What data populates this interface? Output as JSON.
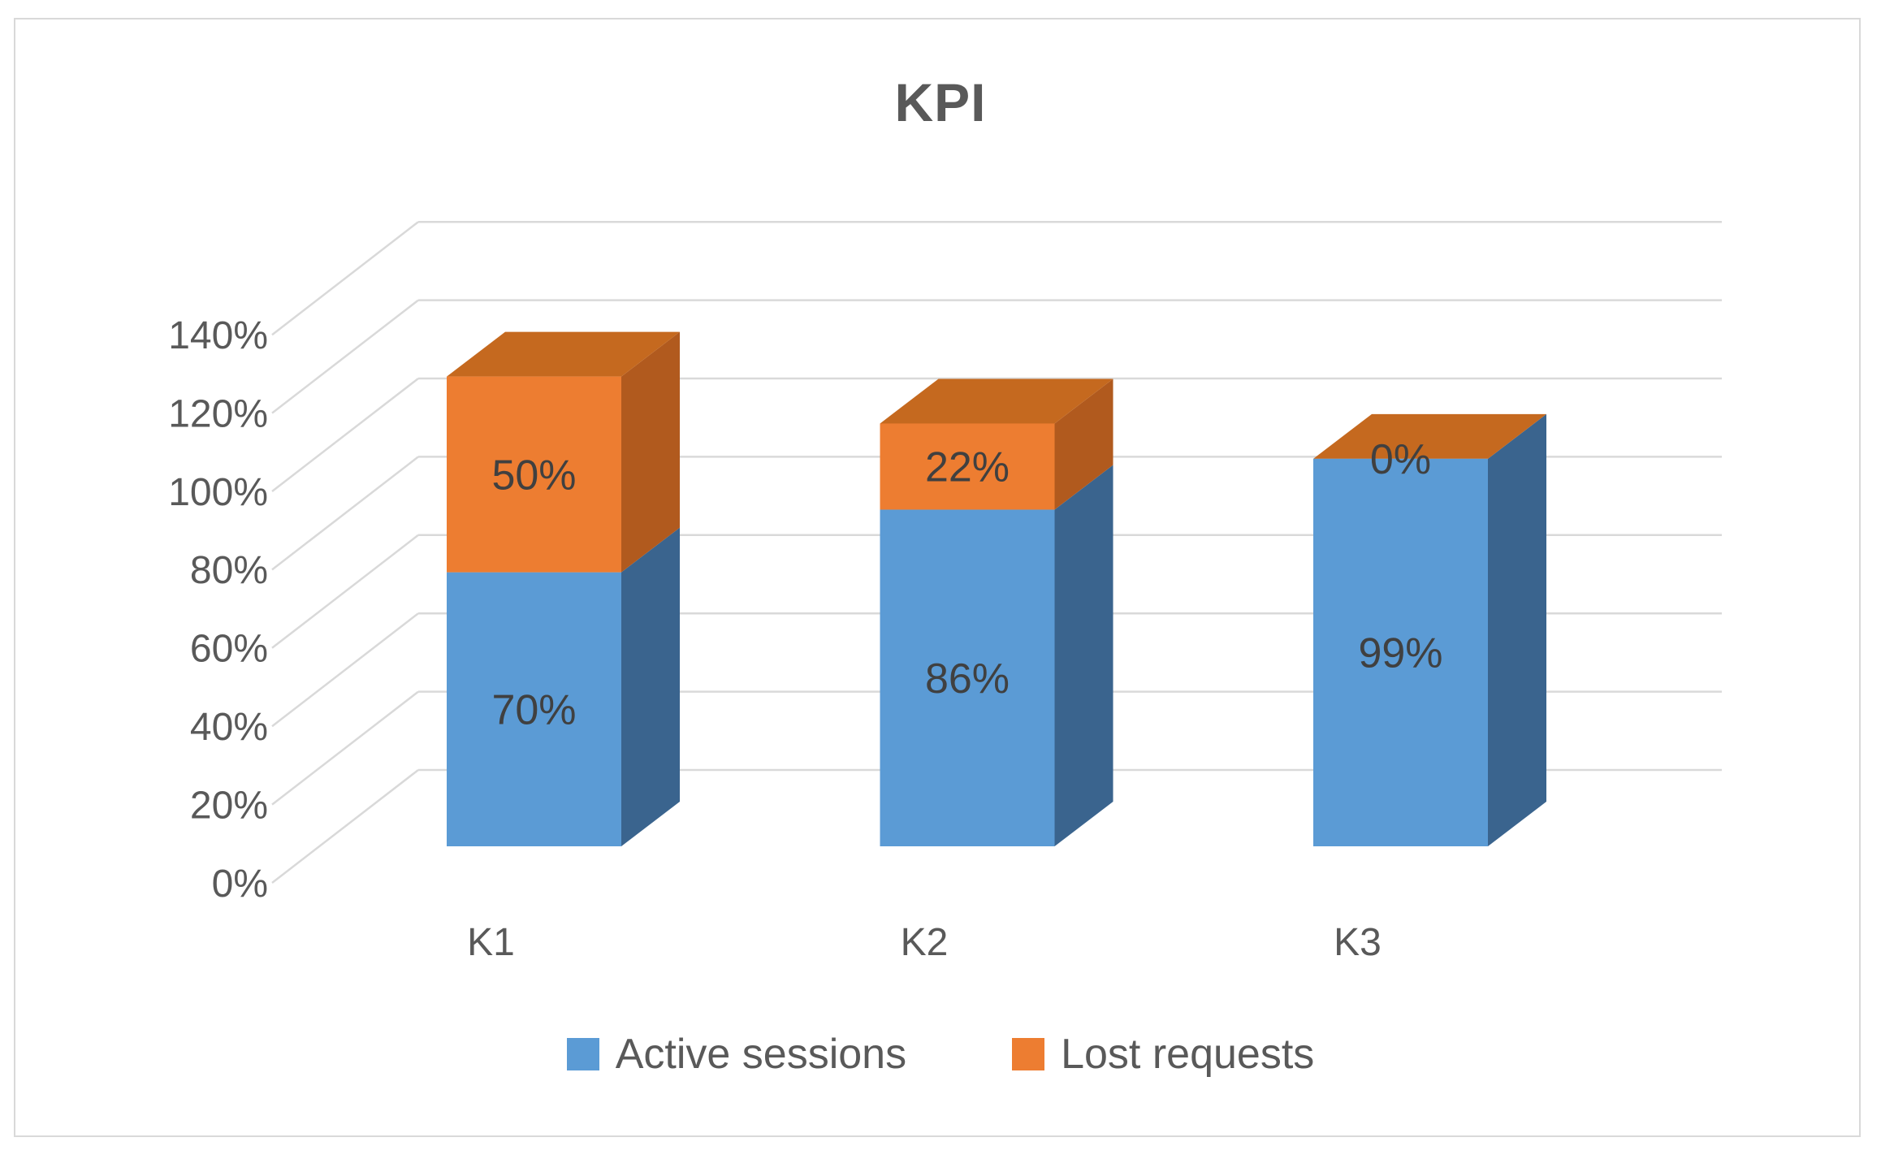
{
  "title": "KPI",
  "chart_data": {
    "type": "bar",
    "subtype": "3d-stacked-column",
    "stacked": true,
    "title": "KPI",
    "categories": [
      "K1",
      "K2",
      "K3"
    ],
    "series": [
      {
        "name": "Active sessions",
        "values": [
          70,
          86,
          99
        ]
      },
      {
        "name": "Lost requests",
        "values": [
          50,
          22,
          0
        ]
      }
    ],
    "value_label_format": "percent",
    "y_ticks": [
      "0%",
      "20%",
      "40%",
      "60%",
      "80%",
      "100%",
      "120%",
      "140%"
    ],
    "ylim": [
      0,
      140
    ],
    "y_step": 20,
    "grid": true,
    "legend_position": "bottom",
    "xlabel": "",
    "ylabel": ""
  },
  "legend": {
    "items": [
      {
        "label": "Active sessions",
        "color": "#5B9BD5"
      },
      {
        "label": "Lost requests",
        "color": "#ED7D31"
      }
    ]
  },
  "colors": {
    "blue_front": "#5B9BD5",
    "blue_side": "#3A648E",
    "orange_front": "#ED7D31",
    "orange_side": "#B15A1E",
    "orange_top": "#C5691F",
    "gridline": "#D9D9D9",
    "frame_border": "#D9D9D9",
    "text_gray": "#595959",
    "value_text": "#404040"
  }
}
